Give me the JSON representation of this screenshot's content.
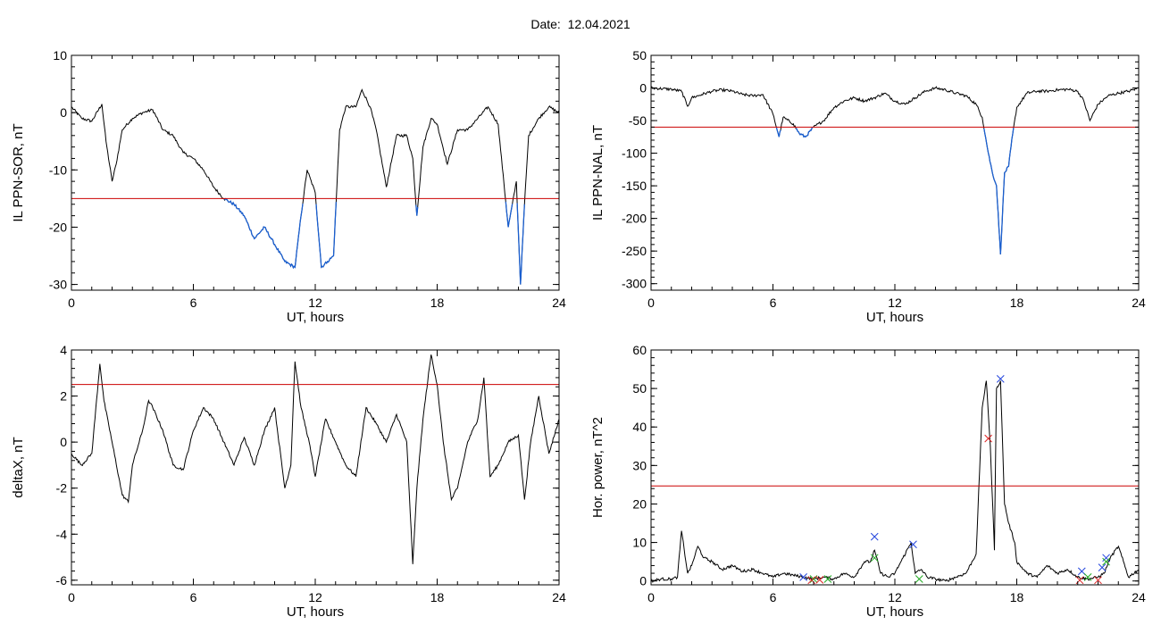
{
  "header": {
    "date_label": "Date:",
    "date_value": "12.04.2021"
  },
  "colors": {
    "trace": "#000000",
    "threshold": "#cc0000",
    "highlight": "#1a5fd0",
    "marker_blue": "#2244dd",
    "marker_green": "#22aa22",
    "marker_red": "#dd2222"
  },
  "chart_data": [
    {
      "type": "line",
      "ylabel": "IL PPN-SOR, nT",
      "xlabel": "UT, hours",
      "xlim": [
        0,
        24
      ],
      "ylim": [
        -31,
        10
      ],
      "xticks": [
        0,
        6,
        12,
        18,
        24
      ],
      "yticks": [
        -30,
        -20,
        -10,
        0,
        10
      ],
      "threshold": -15,
      "highlight_below_threshold": true,
      "series": [
        {
          "x": [
            0,
            0.5,
            1,
            1.5,
            1.7,
            2,
            2.2,
            2.5,
            3,
            3.5,
            4,
            4.5,
            5,
            5.5,
            6,
            6.5,
            7,
            7.5,
            8,
            8.5,
            9,
            9.5,
            10,
            10.5,
            11,
            11.3,
            11.6,
            12,
            12.3,
            12.6,
            12.9,
            13.2,
            13.5,
            14,
            14.3,
            14.7,
            15,
            15.5,
            16,
            16.5,
            16.8,
            17,
            17.3,
            17.7,
            18,
            18.5,
            19,
            19.5,
            20,
            20.5,
            21,
            21.5,
            21.9,
            22.1,
            22.3,
            22.5,
            23,
            23.5,
            24
          ],
          "y": [
            1,
            -1,
            -1.5,
            1.5,
            -5,
            -12,
            -9,
            -3,
            -1,
            0,
            0.5,
            -3,
            -4,
            -7,
            -8,
            -10,
            -13,
            -15,
            -16,
            -18,
            -22,
            -20,
            -23,
            -26,
            -27,
            -18,
            -10,
            -14,
            -27,
            -26,
            -25,
            -3,
            1,
            1,
            4,
            1,
            -3,
            -13,
            -4,
            -4,
            -8,
            -18,
            -6,
            -1,
            -2,
            -9,
            -3,
            -3,
            -1,
            1,
            -2,
            -20,
            -12,
            -30,
            -16,
            -4,
            -1,
            1,
            0
          ]
        }
      ]
    },
    {
      "type": "line",
      "ylabel": "IL PPN-NAL, nT",
      "xlabel": "UT, hours",
      "xlim": [
        0,
        24
      ],
      "ylim": [
        -310,
        50
      ],
      "xticks": [
        0,
        6,
        12,
        18,
        24
      ],
      "yticks": [
        -300,
        -250,
        -200,
        -150,
        -100,
        -50,
        0,
        50
      ],
      "threshold": -60,
      "highlight_below_threshold": true,
      "series": [
        {
          "x": [
            0,
            1,
            1.5,
            1.8,
            2,
            2.5,
            3,
            3.5,
            4,
            4.5,
            5,
            5.5,
            6,
            6.3,
            6.5,
            7,
            7.3,
            7.6,
            8,
            8.5,
            9,
            9.5,
            10,
            10.5,
            11,
            11.5,
            12,
            12.5,
            13,
            13.5,
            14,
            14.5,
            15,
            15.5,
            16,
            16.3,
            16.6,
            16.8,
            17,
            17.2,
            17.4,
            17.6,
            17.8,
            18,
            18.5,
            19,
            19.5,
            20,
            20.5,
            21,
            21.3,
            21.6,
            22,
            22.5,
            23,
            23.5,
            24
          ],
          "y": [
            0,
            -2,
            -5,
            -28,
            -15,
            -10,
            -5,
            -3,
            -5,
            -10,
            -12,
            -10,
            -40,
            -75,
            -45,
            -55,
            -70,
            -75,
            -60,
            -50,
            -30,
            -20,
            -15,
            -20,
            -15,
            -8,
            -20,
            -25,
            -15,
            -5,
            0,
            -3,
            -8,
            -12,
            -25,
            -45,
            -100,
            -130,
            -150,
            -255,
            -130,
            -120,
            -70,
            -30,
            -8,
            -5,
            -5,
            -3,
            -2,
            -5,
            -20,
            -50,
            -25,
            -12,
            -8,
            -5,
            0
          ]
        }
      ]
    },
    {
      "type": "line",
      "ylabel": "deltaX, nT",
      "xlabel": "UT, hours",
      "xlim": [
        0,
        24
      ],
      "ylim": [
        -6.2,
        4
      ],
      "xticks": [
        0,
        6,
        12,
        18,
        24
      ],
      "yticks": [
        -6,
        -4,
        -2,
        0,
        2,
        4
      ],
      "threshold": 2.5,
      "series": [
        {
          "x": [
            0,
            0.5,
            1,
            1.4,
            1.6,
            2,
            2.5,
            2.8,
            3,
            3.5,
            3.8,
            4,
            4.5,
            5,
            5.5,
            6,
            6.5,
            7,
            7.5,
            8,
            8.5,
            9,
            9.5,
            10,
            10.5,
            10.8,
            11,
            11.3,
            11.7,
            12,
            12.5,
            13,
            13.5,
            14,
            14.5,
            15,
            15.5,
            16,
            16.5,
            16.8,
            17,
            17.3,
            17.7,
            18,
            18.3,
            18.7,
            19,
            19.5,
            20,
            20.3,
            20.6,
            21,
            21.5,
            22,
            22.3,
            22.6,
            23,
            23.5,
            24
          ],
          "y": [
            -0.5,
            -1,
            -0.5,
            3.4,
            1.8,
            0,
            -2.3,
            -2.6,
            -1,
            0.5,
            1.8,
            1.5,
            0.5,
            -1,
            -1.2,
            0.5,
            1.5,
            1,
            0,
            -1,
            0.2,
            -1,
            0.5,
            1.5,
            -2,
            -1,
            3.5,
            1.5,
            0,
            -1.5,
            1,
            0,
            -1,
            -1.5,
            1.5,
            0.8,
            0,
            1.2,
            0,
            -5.3,
            -2,
            1,
            3.8,
            2.5,
            0,
            -2.5,
            -2,
            0,
            1,
            2.8,
            -1.5,
            -1,
            0,
            0.3,
            -2.5,
            0,
            2,
            -0.5,
            1
          ]
        }
      ]
    },
    {
      "type": "line",
      "ylabel": "Hor. power, nT^2",
      "xlabel": "UT, hours",
      "xlim": [
        0,
        24
      ],
      "ylim": [
        -1,
        60
      ],
      "xticks": [
        0,
        6,
        12,
        18,
        24
      ],
      "yticks": [
        0,
        10,
        20,
        30,
        40,
        50,
        60
      ],
      "threshold": 24.7,
      "series": [
        {
          "x": [
            0,
            0.5,
            1,
            1.3,
            1.5,
            1.8,
            2,
            2.3,
            2.6,
            3,
            3.5,
            4,
            4.5,
            5,
            5.5,
            6,
            6.5,
            7,
            7.5,
            8,
            8.5,
            9,
            9.5,
            10,
            10.5,
            10.8,
            11,
            11.3,
            11.7,
            12,
            12.4,
            12.8,
            13,
            13.3,
            13.6,
            14,
            14.5,
            15,
            15.5,
            16,
            16.3,
            16.5,
            16.7,
            16.9,
            17,
            17.2,
            17.4,
            17.6,
            17.9,
            18,
            18.5,
            19,
            19.5,
            20,
            20.5,
            21,
            21.5,
            22,
            22.3,
            22.6,
            23,
            23.5,
            24
          ],
          "y": [
            0,
            0.5,
            0.5,
            1,
            13,
            2,
            4,
            9,
            6,
            5,
            3,
            4,
            2.5,
            3,
            2,
            1,
            2,
            1.5,
            1,
            0.5,
            1,
            0.5,
            2,
            1,
            5,
            5,
            8,
            2,
            1,
            2,
            6,
            10,
            2,
            3,
            1,
            0.5,
            0,
            1,
            2,
            7,
            45,
            52,
            35,
            8,
            50,
            52,
            20,
            15,
            10,
            5,
            2,
            1,
            4,
            2,
            3,
            1,
            0.5,
            1,
            2,
            6,
            9,
            1,
            3
          ]
        }
      ],
      "markers": [
        {
          "x": 17.2,
          "y": 52.5,
          "color": "blue"
        },
        {
          "x": 16.6,
          "y": 37,
          "color": "red"
        },
        {
          "x": 11,
          "y": 11.5,
          "color": "blue"
        },
        {
          "x": 12.9,
          "y": 9.5,
          "color": "blue"
        },
        {
          "x": 11,
          "y": 6,
          "color": "green"
        },
        {
          "x": 7.5,
          "y": 1,
          "color": "blue"
        },
        {
          "x": 8,
          "y": 0.5,
          "color": "green"
        },
        {
          "x": 8.3,
          "y": 0.3,
          "color": "red"
        },
        {
          "x": 7.9,
          "y": 0.2,
          "color": "red"
        },
        {
          "x": 8.7,
          "y": 0.5,
          "color": "green"
        },
        {
          "x": 13.2,
          "y": 0.5,
          "color": "green"
        },
        {
          "x": 21.2,
          "y": 2.5,
          "color": "blue"
        },
        {
          "x": 21.5,
          "y": 1,
          "color": "green"
        },
        {
          "x": 21.1,
          "y": 0.2,
          "color": "red"
        },
        {
          "x": 22,
          "y": 0.2,
          "color": "red"
        },
        {
          "x": 22.4,
          "y": 6,
          "color": "blue"
        },
        {
          "x": 22.4,
          "y": 5,
          "color": "green"
        },
        {
          "x": 22.2,
          "y": 3.5,
          "color": "blue"
        }
      ]
    }
  ]
}
